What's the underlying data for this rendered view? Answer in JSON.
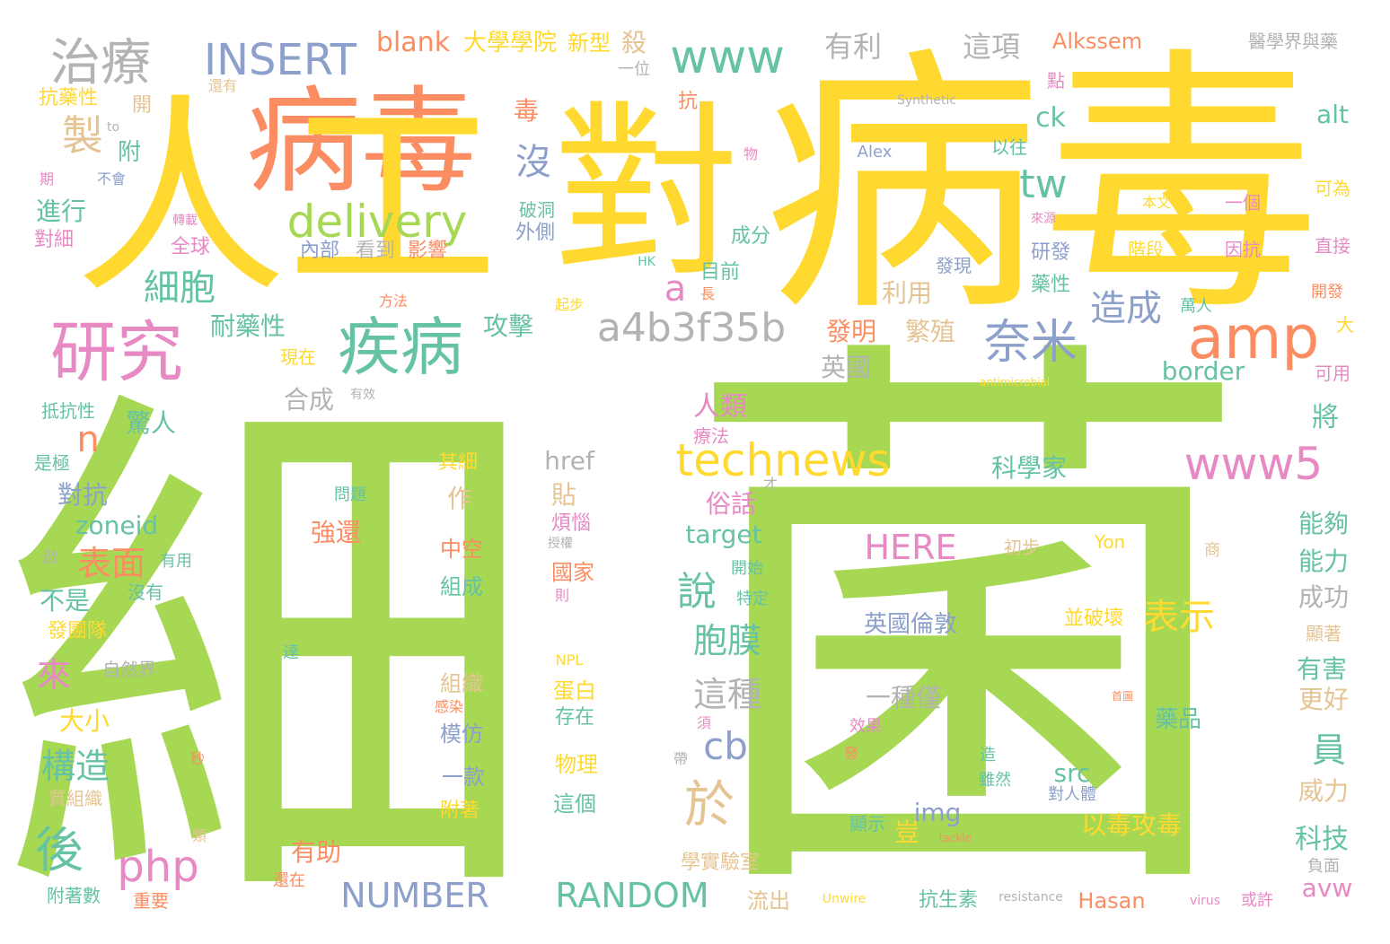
{
  "word_cloud": {
    "words": [
      {
        "text": "細",
        "color": "#a6d854"
      },
      {
        "text": "菌",
        "color": "#a6d854"
      },
      {
        "text": "病毒",
        "color": "#ffd92f"
      },
      {
        "text": "病毒",
        "color": "#fc8d62"
      },
      {
        "text": "人工",
        "color": "#ffd92f"
      },
      {
        "text": "對",
        "color": "#ffd92f"
      },
      {
        "text": "研究",
        "color": "#e78ac3"
      },
      {
        "text": "疾病",
        "color": "#66c2a5"
      },
      {
        "text": "治療",
        "color": "#b3b3b3"
      },
      {
        "text": "INSERT",
        "color": "#8da0cb"
      },
      {
        "text": "www",
        "color": "#66c2a5"
      },
      {
        "text": "amp",
        "color": "#fc8d62"
      },
      {
        "text": "奈米",
        "color": "#8da0cb"
      },
      {
        "text": "delivery",
        "color": "#a6d854"
      },
      {
        "text": "technews",
        "color": "#ffd92f"
      },
      {
        "text": "www5",
        "color": "#e78ac3"
      },
      {
        "text": "a4b3f35b",
        "color": "#b3b3b3"
      },
      {
        "text": "製",
        "color": "#e5c494"
      },
      {
        "text": "細胞",
        "color": "#66c2a5"
      },
      {
        "text": "tw",
        "color": "#66c2a5"
      },
      {
        "text": "沒",
        "color": "#8da0cb"
      },
      {
        "text": "a",
        "color": "#e78ac3"
      },
      {
        "text": "造成",
        "color": "#8da0cb"
      },
      {
        "text": "於",
        "color": "#e5c494"
      },
      {
        "text": "php",
        "color": "#e78ac3"
      },
      {
        "text": "後",
        "color": "#66c2a5"
      },
      {
        "text": "NUMBER",
        "color": "#8da0cb"
      },
      {
        "text": "RANDOM",
        "color": "#66c2a5"
      },
      {
        "text": "表示",
        "color": "#ffd92f"
      },
      {
        "text": "說",
        "color": "#66c2a5"
      },
      {
        "text": "胞膜",
        "color": "#66c2a5"
      },
      {
        "text": "這種",
        "color": "#b3b3b3"
      },
      {
        "text": "cb",
        "color": "#8da0cb"
      },
      {
        "text": "HERE",
        "color": "#e78ac3"
      },
      {
        "text": "構造",
        "color": "#66c2a5"
      },
      {
        "text": "表面",
        "color": "#fc8d62"
      },
      {
        "text": "n",
        "color": "#fc8d62"
      },
      {
        "text": "blank",
        "color": "#fc8d62"
      },
      {
        "text": "大學學院",
        "color": "#ffd92f"
      },
      {
        "text": "新型",
        "color": "#ffd92f"
      },
      {
        "text": "殺",
        "color": "#e5c494"
      },
      {
        "text": "有利",
        "color": "#b3b3b3"
      },
      {
        "text": "這項",
        "color": "#b3b3b3"
      },
      {
        "text": "Alkssem",
        "color": "#fc8d62"
      },
      {
        "text": "醫學界與藥",
        "color": "#b3b3b3"
      },
      {
        "text": "ck",
        "color": "#66c2a5"
      },
      {
        "text": "alt",
        "color": "#66c2a5"
      },
      {
        "text": "攻擊",
        "color": "#66c2a5"
      },
      {
        "text": "耐藥性",
        "color": "#66c2a5"
      },
      {
        "text": "發明",
        "color": "#fc8d62"
      },
      {
        "text": "繁殖",
        "color": "#e5c494"
      },
      {
        "text": "利用",
        "color": "#e5c494"
      },
      {
        "text": "英國",
        "color": "#b3b3b3"
      },
      {
        "text": "border",
        "color": "#66c2a5"
      },
      {
        "text": "人類",
        "color": "#e78ac3"
      },
      {
        "text": "療法",
        "color": "#e78ac3"
      },
      {
        "text": "科學家",
        "color": "#66c2a5"
      },
      {
        "text": "將",
        "color": "#66c2a5"
      },
      {
        "text": "驚人",
        "color": "#66c2a5"
      },
      {
        "text": "合成",
        "color": "#b3b3b3"
      },
      {
        "text": "對抗",
        "color": "#8da0cb"
      },
      {
        "text": "zoneid",
        "color": "#66c2a5"
      },
      {
        "text": "來",
        "color": "#e78ac3"
      },
      {
        "text": "不是",
        "color": "#66c2a5"
      },
      {
        "text": "大小",
        "color": "#ffd92f"
      },
      {
        "text": "強還",
        "color": "#fc8d62"
      },
      {
        "text": "target",
        "color": "#66c2a5"
      },
      {
        "text": "俗話",
        "color": "#e78ac3"
      },
      {
        "text": "能夠",
        "color": "#66c2a5"
      },
      {
        "text": "能力",
        "color": "#66c2a5"
      },
      {
        "text": "成功",
        "color": "#b3b3b3"
      },
      {
        "text": "有害",
        "color": "#66c2a5"
      },
      {
        "text": "更好",
        "color": "#e5c494"
      },
      {
        "text": "員",
        "color": "#66c2a5"
      },
      {
        "text": "威力",
        "color": "#e5c494"
      },
      {
        "text": "科技",
        "color": "#66c2a5"
      },
      {
        "text": "avw",
        "color": "#e78ac3"
      },
      {
        "text": "一種僅",
        "color": "#b3b3b3"
      },
      {
        "text": "藥品",
        "color": "#66c2a5"
      },
      {
        "text": "英國倫敦",
        "color": "#8da0cb"
      },
      {
        "text": "並破壞",
        "color": "#ffd92f"
      },
      {
        "text": "以毒攻毒",
        "color": "#ffd92f"
      },
      {
        "text": "src",
        "color": "#66c2a5"
      },
      {
        "text": "img",
        "color": "#8da0cb"
      },
      {
        "text": "豈",
        "color": "#ffd92f"
      },
      {
        "text": "Hasan",
        "color": "#fc8d62"
      },
      {
        "text": "抗生素",
        "color": "#66c2a5"
      },
      {
        "text": "有助",
        "color": "#fc8d62"
      },
      {
        "text": "學實驗室",
        "color": "#e5c494"
      },
      {
        "text": "流出",
        "color": "#e5c494"
      },
      {
        "text": "href",
        "color": "#b3b3b3"
      },
      {
        "text": "其細",
        "color": "#ffd92f"
      },
      {
        "text": "貼",
        "color": "#e5c494"
      },
      {
        "text": "作",
        "color": "#e5c494"
      },
      {
        "text": "煩惱",
        "color": "#e78ac3"
      },
      {
        "text": "中空",
        "color": "#fc8d62"
      },
      {
        "text": "國家",
        "color": "#fc8d62"
      },
      {
        "text": "組成",
        "color": "#66c2a5"
      },
      {
        "text": "組織",
        "color": "#e5c494"
      },
      {
        "text": "蛋白",
        "color": "#ffd92f"
      },
      {
        "text": "模仿",
        "color": "#8da0cb"
      },
      {
        "text": "存在",
        "color": "#66c2a5"
      },
      {
        "text": "物理",
        "color": "#ffd92f"
      },
      {
        "text": "一款",
        "color": "#8da0cb"
      },
      {
        "text": "附著",
        "color": "#ffd92f"
      },
      {
        "text": "這個",
        "color": "#66c2a5"
      },
      {
        "text": "抗藥性",
        "color": "#ffd92f"
      },
      {
        "text": "附",
        "color": "#66c2a5"
      },
      {
        "text": "進行",
        "color": "#66c2a5"
      },
      {
        "text": "對細",
        "color": "#e78ac3"
      },
      {
        "text": "全球",
        "color": "#e78ac3"
      },
      {
        "text": "內部",
        "color": "#8da0cb"
      },
      {
        "text": "看到",
        "color": "#b3b3b3"
      },
      {
        "text": "影響",
        "color": "#fc8d62"
      },
      {
        "text": "外側",
        "color": "#8da0cb"
      },
      {
        "text": "成分",
        "color": "#66c2a5"
      },
      {
        "text": "目前",
        "color": "#66c2a5"
      },
      {
        "text": "研發",
        "color": "#8da0cb"
      },
      {
        "text": "藥性",
        "color": "#66c2a5"
      },
      {
        "text": "發現",
        "color": "#8da0cb"
      },
      {
        "text": "階段",
        "color": "#ffd92f"
      },
      {
        "text": "因抗",
        "color": "#e78ac3"
      },
      {
        "text": "直接",
        "color": "#e78ac3"
      },
      {
        "text": "萬人",
        "color": "#66c2a5"
      },
      {
        "text": "開發",
        "color": "#fc8d62"
      },
      {
        "text": "可用",
        "color": "#e78ac3"
      },
      {
        "text": "抵抗性",
        "color": "#66c2a5"
      },
      {
        "text": "是極",
        "color": "#66c2a5"
      },
      {
        "text": "問題",
        "color": "#66c2a5"
      },
      {
        "text": "自然界",
        "color": "#b3b3b3"
      },
      {
        "text": "發團隊",
        "color": "#ffd92f"
      },
      {
        "text": "有用",
        "color": "#66c2a5"
      },
      {
        "text": "沒有",
        "color": "#66c2a5"
      },
      {
        "text": "開始",
        "color": "#66c2a5"
      },
      {
        "text": "特定",
        "color": "#66c2a5"
      },
      {
        "text": "初步",
        "color": "#e5c494"
      },
      {
        "text": "Yon",
        "color": "#ffd92f"
      },
      {
        "text": "顯著",
        "color": "#e5c494"
      },
      {
        "text": "質組織",
        "color": "#e5c494"
      },
      {
        "text": "附著數",
        "color": "#66c2a5"
      },
      {
        "text": "重要",
        "color": "#fc8d62"
      },
      {
        "text": "還在",
        "color": "#fc8d62"
      },
      {
        "text": "負面",
        "color": "#b3b3b3"
      },
      {
        "text": "或許",
        "color": "#e78ac3"
      },
      {
        "text": "效果",
        "color": "#e78ac3"
      },
      {
        "text": "顯示",
        "color": "#66c2a5"
      },
      {
        "text": "雖然",
        "color": "#66c2a5"
      },
      {
        "text": "對人體",
        "color": "#8da0cb"
      },
      {
        "text": "一個",
        "color": "#e78ac3"
      },
      {
        "text": "本文",
        "color": "#ffd92f"
      },
      {
        "text": "可為",
        "color": "#ffd92f"
      },
      {
        "text": "以往",
        "color": "#66c2a5"
      },
      {
        "text": "破洞",
        "color": "#66c2a5"
      },
      {
        "text": "毒",
        "color": "#fc8d62"
      },
      {
        "text": "抗",
        "color": "#fc8d62"
      },
      {
        "text": "點",
        "color": "#e78ac3"
      },
      {
        "text": "一位",
        "color": "#b3b3b3"
      },
      {
        "text": "開",
        "color": "#e5c494"
      },
      {
        "text": "還有",
        "color": "#e5c494"
      },
      {
        "text": "不會",
        "color": "#8da0cb"
      },
      {
        "text": "期",
        "color": "#e78ac3"
      },
      {
        "text": "to",
        "color": "#b3b3b3"
      },
      {
        "text": "轉載",
        "color": "#e78ac3"
      },
      {
        "text": "物",
        "color": "#e78ac3"
      },
      {
        "text": "Alex",
        "color": "#8da0cb"
      },
      {
        "text": "Synthetic",
        "color": "#b3b3b3"
      },
      {
        "text": "來源",
        "color": "#e78ac3"
      },
      {
        "text": "HK",
        "color": "#66c2a5"
      },
      {
        "text": "方法",
        "color": "#fc8d62"
      },
      {
        "text": "起步",
        "color": "#ffd92f"
      },
      {
        "text": "長",
        "color": "#fc8d62"
      },
      {
        "text": "大",
        "color": "#ffd92f"
      },
      {
        "text": "現在",
        "color": "#ffd92f"
      },
      {
        "text": "有效",
        "color": "#b3b3b3"
      },
      {
        "text": "antimicrobial",
        "color": "#ffd92f"
      },
      {
        "text": "才",
        "color": "#b3b3b3"
      },
      {
        "text": "授權",
        "color": "#b3b3b3"
      },
      {
        "text": "則",
        "color": "#e78ac3"
      },
      {
        "text": "商",
        "color": "#e5c494"
      },
      {
        "text": "啟",
        "color": "#b3b3b3"
      },
      {
        "text": "達",
        "color": "#66c2a5"
      },
      {
        "text": "秒",
        "color": "#fc8d62"
      },
      {
        "text": "類",
        "color": "#e5c494"
      },
      {
        "text": "帶",
        "color": "#b3b3b3"
      },
      {
        "text": "須",
        "color": "#e78ac3"
      },
      {
        "text": "發",
        "color": "#fc8d62"
      },
      {
        "text": "造",
        "color": "#66c2a5"
      },
      {
        "text": "感染",
        "color": "#fc8d62"
      },
      {
        "text": "tackle",
        "color": "#fc8d62"
      },
      {
        "text": "首圖",
        "color": "#fc8d62"
      },
      {
        "text": "Unwire",
        "color": "#ffd92f"
      },
      {
        "text": "resistance",
        "color": "#b3b3b3"
      },
      {
        "text": "virus",
        "color": "#e78ac3"
      },
      {
        "text": "NPL",
        "color": "#ffd92f"
      }
    ]
  }
}
